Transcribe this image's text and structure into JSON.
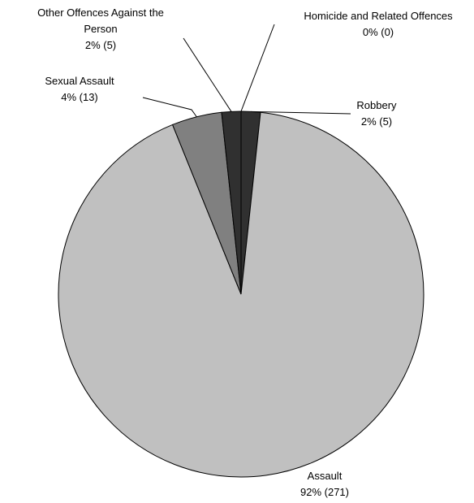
{
  "chart_data": {
    "type": "pie",
    "series": [
      {
        "values": [
          0,
          5,
          271,
          13,
          5
        ],
        "categories": [
          "Homicide and Related Offences",
          "Robbery",
          "Assault",
          "Sexual Assault",
          "Other Offences Against the Person"
        ],
        "percent_labels": [
          "0% (0)",
          "2% (5)",
          "92% (271)",
          "4% (13)",
          "2% (5)"
        ],
        "colors": [
          "#303030",
          "#303030",
          "#c0c0c0",
          "#808080",
          "#303030"
        ]
      }
    ],
    "labels": [
      {
        "lines": [
          "Homicide and Related Offences",
          "0% (0)"
        ]
      },
      {
        "lines": [
          "Robbery",
          "2% (5)"
        ]
      },
      {
        "lines": [
          "Assault",
          "92% (271)"
        ]
      },
      {
        "lines": [
          "Sexual Assault",
          "4% (13)"
        ]
      },
      {
        "lines": [
          "Other Offences Against the Person",
          "2% (5)"
        ]
      }
    ],
    "slice_border_color": "#000000",
    "leader_line_color": "#000000"
  }
}
